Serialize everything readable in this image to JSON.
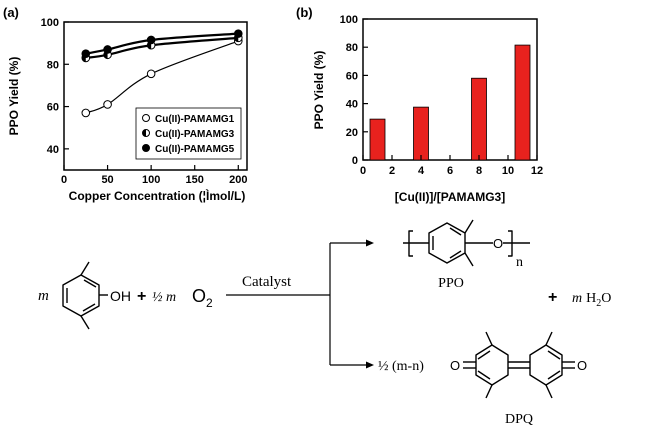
{
  "chart_data": [
    {
      "type": "line",
      "panel_label": "(a)",
      "xlabel": "Copper Concentration (¦Ìmol/L)",
      "ylabel": "PPO Yield (%)",
      "xlim": [
        0,
        210
      ],
      "ylim": [
        30,
        100
      ],
      "xticks": [
        "0",
        "50",
        "100",
        "150",
        "200"
      ],
      "yticks": [
        "40",
        "60",
        "80",
        "100"
      ],
      "legend_position": "bottom-right",
      "series": [
        {
          "name": "Cu(II)-PAMAMG1",
          "marker": "open-circle",
          "x": [
            25,
            50,
            100,
            200
          ],
          "y": [
            57,
            61,
            75.5,
            91
          ]
        },
        {
          "name": "Cu(II)-PAMAMG3",
          "marker": "half-filled-circle",
          "x": [
            25,
            50,
            100,
            200
          ],
          "y": [
            83,
            84.5,
            89,
            92.5
          ]
        },
        {
          "name": "Cu(II)-PAMAMG5",
          "marker": "filled-circle",
          "x": [
            25,
            50,
            100,
            200
          ],
          "y": [
            85,
            87,
            91.5,
            94.5
          ]
        }
      ]
    },
    {
      "type": "bar",
      "panel_label": "(b)",
      "xlabel": "[Cu(II)]/[PAMAMG3]",
      "ylabel": "PPO Yield (%)",
      "xlim": [
        0,
        12
      ],
      "ylim": [
        0,
        100
      ],
      "xticks": [
        "0",
        "2",
        "4",
        "6",
        "8",
        "10",
        "12"
      ],
      "yticks": [
        "0",
        "20",
        "40",
        "60",
        "80",
        "100"
      ],
      "bar_color": "#e8221e",
      "x": [
        1,
        4,
        8,
        11
      ],
      "values": [
        29,
        37.5,
        58,
        81.5
      ]
    }
  ],
  "scheme": {
    "m_coef": "m",
    "oh_group": "OH",
    "plus_symbol": "+",
    "half_m": "½ m",
    "oxygen": "O",
    "oxygen_sub": "2",
    "catalyst_label": "Catalyst",
    "ppo_o": "O",
    "ppo_n": "n",
    "ppo_label": "PPO",
    "water_plus": "+",
    "water_m": "m",
    "water_formula": "H",
    "water_sub": "2",
    "water_o": "O",
    "dpq_coef": "½ (m-n)",
    "dpq_o_left": "O",
    "dpq_o_right": "O",
    "dpq_label": "DPQ"
  }
}
